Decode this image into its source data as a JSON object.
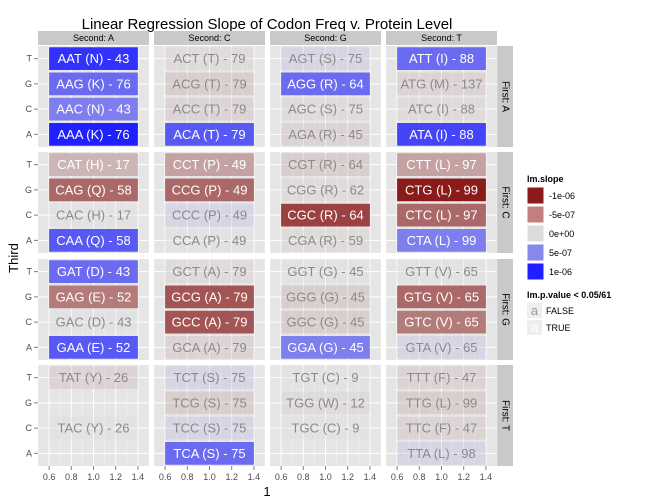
{
  "chart_data": {
    "type": "heatmap",
    "title": "Linear Regression Slope of Codon Freq v. Protein Level",
    "xlabel": "1",
    "ylabel": "Third",
    "x_ticks": [
      "0.6",
      "0.8",
      "1.0",
      "1.2",
      "1.4"
    ],
    "xlim": [
      0.5,
      1.5
    ],
    "y_levels": [
      "T",
      "G",
      "C",
      "A"
    ],
    "columns": [
      {
        "key": "A",
        "label": "Second: A"
      },
      {
        "key": "C",
        "label": "Second: C"
      },
      {
        "key": "G",
        "label": "Second: G"
      },
      {
        "key": "T",
        "label": "Second: T"
      }
    ],
    "rows": [
      {
        "key": "A",
        "label": "First: A"
      },
      {
        "key": "C",
        "label": "First: C"
      },
      {
        "key": "G",
        "label": "First: G"
      },
      {
        "key": "T",
        "label": "First: T"
      }
    ],
    "grid": true,
    "legend": {
      "placement": "right",
      "fill_title": "lm.slope",
      "fill_entries": [
        {
          "label": "-1e-06",
          "value": -1e-06,
          "color": "#8b1a1a"
        },
        {
          "label": "-5e-07",
          "value": -5e-07,
          "color": "#c47e7e"
        },
        {
          "label": "0e+00",
          "value": 0,
          "color": "#dcdcdc"
        },
        {
          "label": "5e-07",
          "value": 5e-07,
          "color": "#8787ee"
        },
        {
          "label": "1e-06",
          "value": 1e-06,
          "color": "#1f1fff"
        }
      ],
      "alpha_title": "lm.p.value < 0.05/61",
      "alpha_entries": [
        {
          "label": "FALSE"
        },
        {
          "label": "TRUE"
        }
      ]
    },
    "cells": [
      {
        "first": "A",
        "second": "A",
        "third": "T",
        "label": "AAT (N) - 43",
        "slope": 9e-07,
        "significant": true
      },
      {
        "first": "A",
        "second": "A",
        "third": "G",
        "label": "AAG (K) - 76",
        "slope": 6e-07,
        "significant": true
      },
      {
        "first": "A",
        "second": "A",
        "third": "C",
        "label": "AAC (N) - 43",
        "slope": 5e-07,
        "significant": true
      },
      {
        "first": "A",
        "second": "A",
        "third": "A",
        "label": "AAA (K) - 76",
        "slope": 1e-06,
        "significant": true
      },
      {
        "first": "A",
        "second": "C",
        "third": "T",
        "label": "ACT (T) - 79",
        "slope": -1e-07,
        "significant": false
      },
      {
        "first": "A",
        "second": "C",
        "third": "G",
        "label": "ACG (T) - 79",
        "slope": -3e-07,
        "significant": false
      },
      {
        "first": "A",
        "second": "C",
        "third": "C",
        "label": "ACC (T) - 79",
        "slope": -2e-07,
        "significant": false
      },
      {
        "first": "A",
        "second": "C",
        "third": "A",
        "label": "ACA (T) - 79",
        "slope": 7e-07,
        "significant": true
      },
      {
        "first": "A",
        "second": "G",
        "third": "T",
        "label": "AGT (S) - 75",
        "slope": 2e-07,
        "significant": false
      },
      {
        "first": "A",
        "second": "G",
        "third": "G",
        "label": "AGG (R) - 64",
        "slope": 6e-07,
        "significant": true
      },
      {
        "first": "A",
        "second": "G",
        "third": "C",
        "label": "AGC (S) - 75",
        "slope": -1e-07,
        "significant": false
      },
      {
        "first": "A",
        "second": "G",
        "third": "A",
        "label": "AGA (R) - 45",
        "slope": -2e-07,
        "significant": false
      },
      {
        "first": "A",
        "second": "T",
        "third": "T",
        "label": "ATT (I) - 88",
        "slope": 6e-07,
        "significant": true
      },
      {
        "first": "A",
        "second": "T",
        "third": "G",
        "label": "ATG (M) - 137",
        "slope": -2e-07,
        "significant": false
      },
      {
        "first": "A",
        "second": "T",
        "third": "C",
        "label": "ATC (I) - 88",
        "slope": -1e-07,
        "significant": false
      },
      {
        "first": "A",
        "second": "T",
        "third": "A",
        "label": "ATA (I) - 88",
        "slope": 8e-07,
        "significant": true
      },
      {
        "first": "C",
        "second": "A",
        "third": "T",
        "label": "CAT (H) - 17",
        "slope": -2e-07,
        "significant": true
      },
      {
        "first": "C",
        "second": "A",
        "third": "G",
        "label": "CAG (Q) - 58",
        "slope": -6e-07,
        "significant": true
      },
      {
        "first": "C",
        "second": "A",
        "third": "C",
        "label": "CAC (H) - 17",
        "slope": 0,
        "significant": false
      },
      {
        "first": "C",
        "second": "A",
        "third": "A",
        "label": "CAA (Q) - 58",
        "slope": 7e-07,
        "significant": true
      },
      {
        "first": "C",
        "second": "C",
        "third": "T",
        "label": "CCT (P) - 49",
        "slope": -3e-07,
        "significant": true
      },
      {
        "first": "C",
        "second": "C",
        "third": "G",
        "label": "CCG (P) - 49",
        "slope": -6e-07,
        "significant": true
      },
      {
        "first": "C",
        "second": "C",
        "third": "C",
        "label": "CCC (P) - 49",
        "slope": 2e-07,
        "significant": false
      },
      {
        "first": "C",
        "second": "C",
        "third": "A",
        "label": "CCA (P) - 49",
        "slope": 0,
        "significant": false
      },
      {
        "first": "C",
        "second": "G",
        "third": "T",
        "label": "CGT (R) - 64",
        "slope": -3e-07,
        "significant": false
      },
      {
        "first": "C",
        "second": "G",
        "third": "G",
        "label": "CGG (R) - 62",
        "slope": -1e-07,
        "significant": false
      },
      {
        "first": "C",
        "second": "G",
        "third": "C",
        "label": "CGC (R) - 64",
        "slope": -8e-07,
        "significant": true
      },
      {
        "first": "C",
        "second": "G",
        "third": "A",
        "label": "CGA (R) - 59",
        "slope": -1e-07,
        "significant": false
      },
      {
        "first": "C",
        "second": "T",
        "third": "T",
        "label": "CTT (L) - 97",
        "slope": -3e-07,
        "significant": true
      },
      {
        "first": "C",
        "second": "T",
        "third": "G",
        "label": "CTG (L) - 99",
        "slope": -1e-06,
        "significant": true
      },
      {
        "first": "C",
        "second": "T",
        "third": "C",
        "label": "CTC (L) - 97",
        "slope": -6e-07,
        "significant": true
      },
      {
        "first": "C",
        "second": "T",
        "third": "A",
        "label": "CTA (L) - 99",
        "slope": 5e-07,
        "significant": true
      },
      {
        "first": "G",
        "second": "A",
        "third": "T",
        "label": "GAT (D) - 43",
        "slope": 6e-07,
        "significant": true
      },
      {
        "first": "G",
        "second": "A",
        "third": "G",
        "label": "GAG (E) - 52",
        "slope": -5e-07,
        "significant": true
      },
      {
        "first": "G",
        "second": "A",
        "third": "C",
        "label": "GAC (D) - 43",
        "slope": 0,
        "significant": false
      },
      {
        "first": "G",
        "second": "A",
        "third": "A",
        "label": "GAA (E) - 52",
        "slope": 7e-07,
        "significant": true
      },
      {
        "first": "G",
        "second": "C",
        "third": "T",
        "label": "GCT (A) - 79",
        "slope": -1e-07,
        "significant": false
      },
      {
        "first": "G",
        "second": "C",
        "third": "G",
        "label": "GCG (A) - 79",
        "slope": -7e-07,
        "significant": true
      },
      {
        "first": "G",
        "second": "C",
        "third": "C",
        "label": "GCC (A) - 79",
        "slope": -7e-07,
        "significant": true
      },
      {
        "first": "G",
        "second": "C",
        "third": "A",
        "label": "GCA (A) - 79",
        "slope": -2e-07,
        "significant": false
      },
      {
        "first": "G",
        "second": "G",
        "third": "T",
        "label": "GGT (G) - 45",
        "slope": 0,
        "significant": false
      },
      {
        "first": "G",
        "second": "G",
        "third": "G",
        "label": "GGG (G) - 45",
        "slope": -3e-07,
        "significant": false
      },
      {
        "first": "G",
        "second": "G",
        "third": "C",
        "label": "GGC (G) - 45",
        "slope": -3e-07,
        "significant": false
      },
      {
        "first": "G",
        "second": "G",
        "third": "A",
        "label": "GGA (G) - 45",
        "slope": 5e-07,
        "significant": true
      },
      {
        "first": "G",
        "second": "T",
        "third": "T",
        "label": "GTT (V) - 65",
        "slope": 0,
        "significant": false
      },
      {
        "first": "G",
        "second": "T",
        "third": "G",
        "label": "GTG (V) - 65",
        "slope": -6e-07,
        "significant": true
      },
      {
        "first": "G",
        "second": "T",
        "third": "C",
        "label": "GTC (V) - 65",
        "slope": -5e-07,
        "significant": true
      },
      {
        "first": "G",
        "second": "T",
        "third": "A",
        "label": "GTA (V) - 65",
        "slope": 2e-07,
        "significant": false
      },
      {
        "first": "T",
        "second": "A",
        "third": "T",
        "label": "TAT (Y) - 26",
        "slope": -2e-07,
        "significant": false
      },
      {
        "first": "T",
        "second": "A",
        "third": "C",
        "label": "TAC (Y) - 26",
        "slope": 0,
        "significant": false
      },
      {
        "first": "T",
        "second": "C",
        "third": "T",
        "label": "TCT (S) - 75",
        "slope": 2e-07,
        "significant": false
      },
      {
        "first": "T",
        "second": "C",
        "third": "G",
        "label": "TCG (S) - 75",
        "slope": -3e-07,
        "significant": false
      },
      {
        "first": "T",
        "second": "C",
        "third": "C",
        "label": "TCC (S) - 75",
        "slope": 2e-07,
        "significant": false
      },
      {
        "first": "T",
        "second": "C",
        "third": "A",
        "label": "TCA (S) - 75",
        "slope": 6e-07,
        "significant": true
      },
      {
        "first": "T",
        "second": "G",
        "third": "T",
        "label": "TGT (C) - 9",
        "slope": 0,
        "significant": false
      },
      {
        "first": "T",
        "second": "G",
        "third": "G",
        "label": "TGG (W) - 12",
        "slope": -1e-07,
        "significant": false
      },
      {
        "first": "T",
        "second": "G",
        "third": "C",
        "label": "TGC (C) - 9",
        "slope": 0,
        "significant": false
      },
      {
        "first": "T",
        "second": "T",
        "third": "T",
        "label": "TTT (F) - 47",
        "slope": -2e-07,
        "significant": false
      },
      {
        "first": "T",
        "second": "T",
        "third": "G",
        "label": "TTG (L) - 99",
        "slope": -3e-07,
        "significant": false
      },
      {
        "first": "T",
        "second": "T",
        "third": "C",
        "label": "TTC (F) - 47",
        "slope": -2e-07,
        "significant": false
      },
      {
        "first": "T",
        "second": "T",
        "third": "A",
        "label": "TTA (L) - 98",
        "slope": 2e-07,
        "significant": false
      }
    ]
  }
}
